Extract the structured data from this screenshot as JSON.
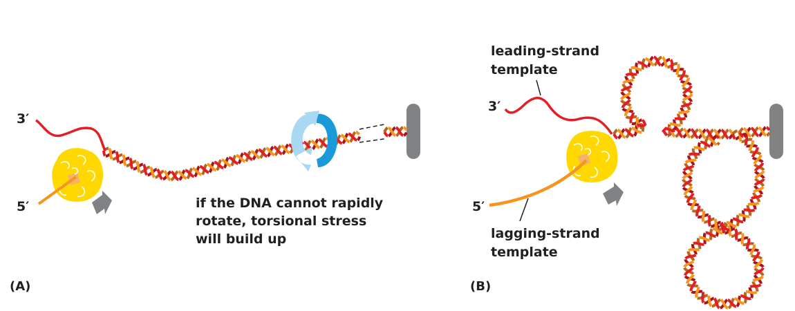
{
  "panel_a": {
    "label": "(A)",
    "three_prime": "3′",
    "five_prime": "5′",
    "caption_lines": [
      "if the DNA cannot rapidly",
      "rotate, torsional stress",
      "will build up"
    ]
  },
  "panel_b": {
    "label": "(B)",
    "three_prime": "3′",
    "five_prime": "5′",
    "leading_label_lines": [
      "leading-strand",
      "template"
    ],
    "lagging_label_lines": [
      "lagging-strand",
      "template"
    ]
  },
  "colors": {
    "strand_red": "#e31e24",
    "strand_dark_red": "#a3161b",
    "strand_orange": "#f7941d",
    "polymerase_yellow": "#ffd800",
    "anchor_gray": "#808284",
    "rotation_blue": "#1a9ad9",
    "rotation_light_blue": "#a8d8f2"
  },
  "icons": {
    "polymerase": "replication-machine-blob",
    "movement_arrow": "gray-arrow-icon",
    "rotation": "rotation-arrow-icon",
    "anchor": "anchor-bar"
  }
}
